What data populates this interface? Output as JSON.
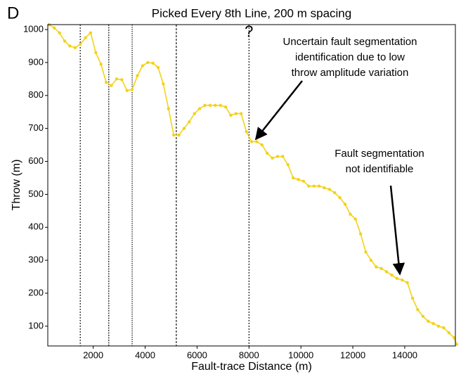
{
  "chart_data": {
    "type": "line",
    "panel_label": "D",
    "title": "Picked Every 8th Line, 200 m spacing",
    "x_label": "Fault-trace Distance (m)",
    "y_label": "Throw (m)",
    "x": [
      300,
      500,
      700,
      900,
      1100,
      1300,
      1500,
      1700,
      1900,
      2100,
      2300,
      2500,
      2700,
      2900,
      3100,
      3300,
      3500,
      3700,
      3900,
      4100,
      4300,
      4500,
      4700,
      4900,
      5100,
      5300,
      5500,
      5700,
      5900,
      6100,
      6300,
      6500,
      6700,
      6900,
      7100,
      7300,
      7500,
      7700,
      7900,
      8100,
      8300,
      8500,
      8700,
      8900,
      9100,
      9300,
      9500,
      9700,
      9900,
      10100,
      10300,
      10500,
      10700,
      10900,
      11100,
      11300,
      11500,
      11700,
      11900,
      12100,
      12300,
      12500,
      12700,
      12900,
      13100,
      13300,
      13500,
      13700,
      13900,
      14100,
      14300,
      14500,
      14700,
      14900,
      15100,
      15300,
      15500,
      15700,
      15900,
      16000
    ],
    "series": [
      {
        "name": "Throw",
        "color": "#f2d21b",
        "values": [
          1015,
          1005,
          990,
          965,
          950,
          945,
          955,
          975,
          990,
          930,
          895,
          840,
          830,
          850,
          848,
          815,
          818,
          860,
          890,
          900,
          898,
          885,
          835,
          760,
          680,
          680,
          700,
          720,
          745,
          760,
          770,
          770,
          770,
          770,
          765,
          740,
          745,
          745,
          690,
          660,
          660,
          650,
          625,
          610,
          615,
          615,
          590,
          550,
          545,
          540,
          525,
          525,
          525,
          520,
          515,
          505,
          490,
          470,
          440,
          425,
          380,
          325,
          300,
          280,
          275,
          265,
          255,
          245,
          240,
          232,
          185,
          150,
          130,
          115,
          108,
          100,
          95,
          80,
          65,
          45
        ]
      }
    ],
    "fault_lines": [
      1500,
      2600,
      3500,
      5200,
      8000
    ],
    "annotations": [
      {
        "lines": [
          "?"
        ]
      },
      {
        "lines": [
          "Uncertain fault segmentation",
          "identification due to low",
          "throw amplitude variation"
        ]
      },
      {
        "lines": [
          "Fault segmentation",
          "not identifiable"
        ]
      }
    ],
    "xlim": [
      250,
      15950
    ],
    "ylim": [
      40,
      1015
    ],
    "xticks": [
      2000,
      4000,
      6000,
      8000,
      10000,
      12000,
      14000
    ],
    "yticks": [
      100,
      200,
      300,
      400,
      500,
      600,
      700,
      800,
      900,
      1000
    ]
  }
}
